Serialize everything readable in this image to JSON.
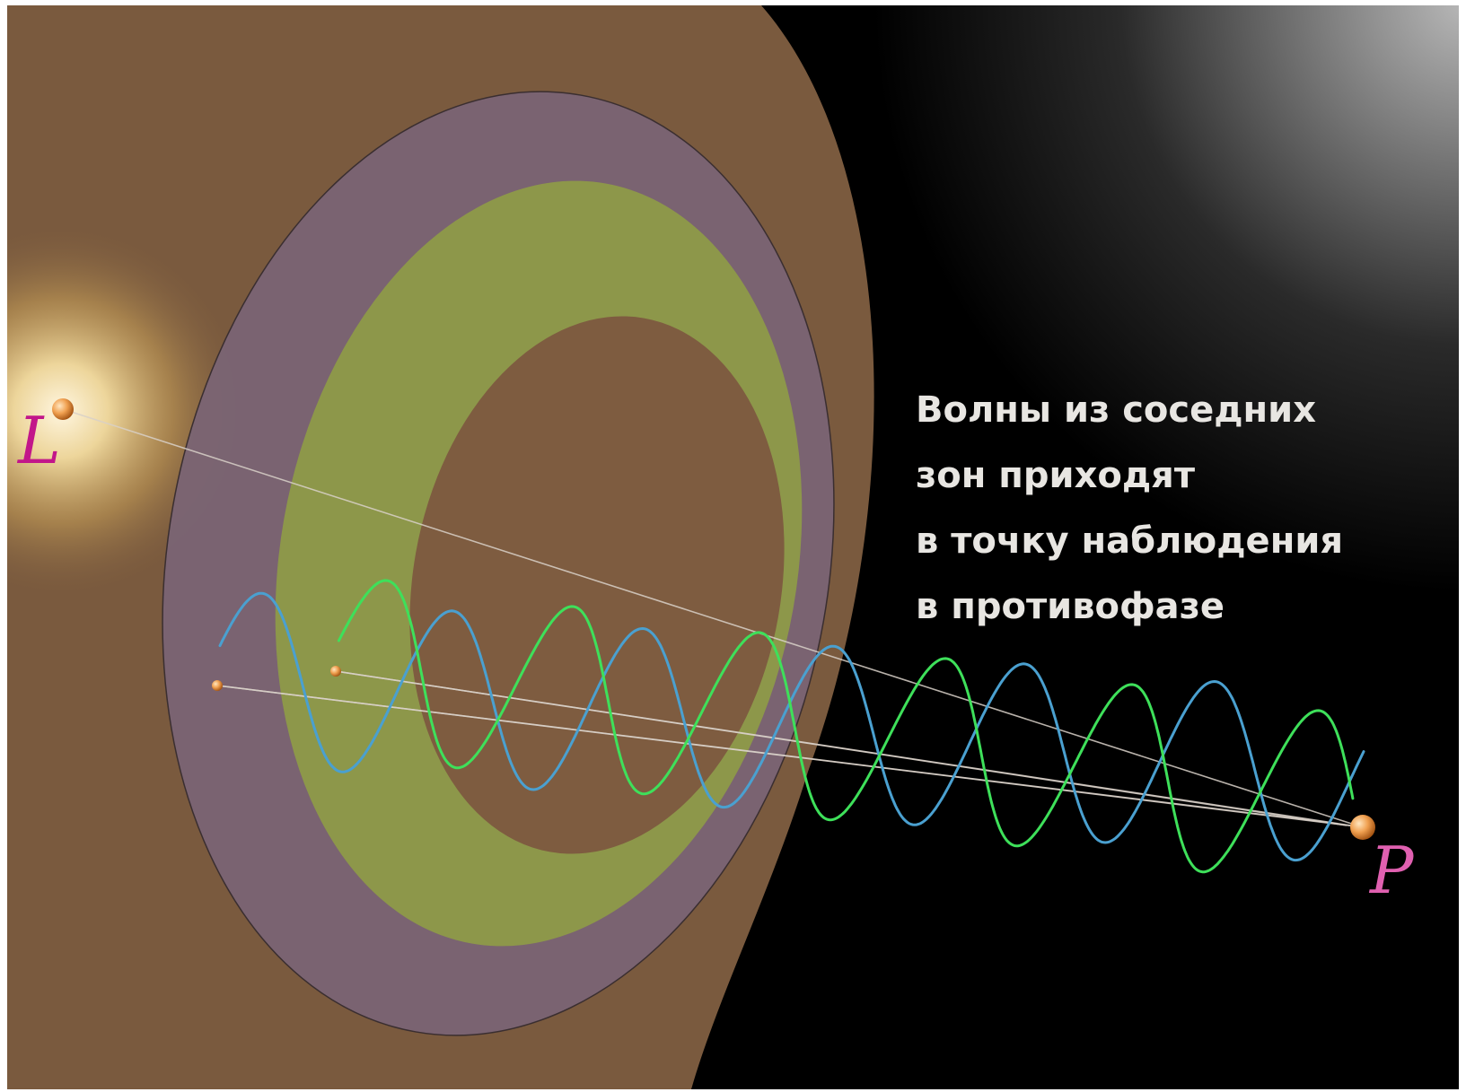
{
  "labels": {
    "source": "L",
    "observer": "P"
  },
  "caption": {
    "line1": "Волны из соседних",
    "line2": "зон приходят",
    "line3": "в точку наблюдения",
    "line4": "в противофазе"
  },
  "colors": {
    "background_dark": "#000000",
    "hemisphere": "#7a5a3e",
    "zone_outer": "#7a6474",
    "zone_middle": "#8e9a48",
    "zone_inner": "#7e5c40",
    "wave_blue": "#4aa0d0",
    "wave_green": "#3ee05a",
    "label_source": "#c2168a",
    "label_observer": "#e060b0",
    "ray": "#d8d0c8"
  }
}
